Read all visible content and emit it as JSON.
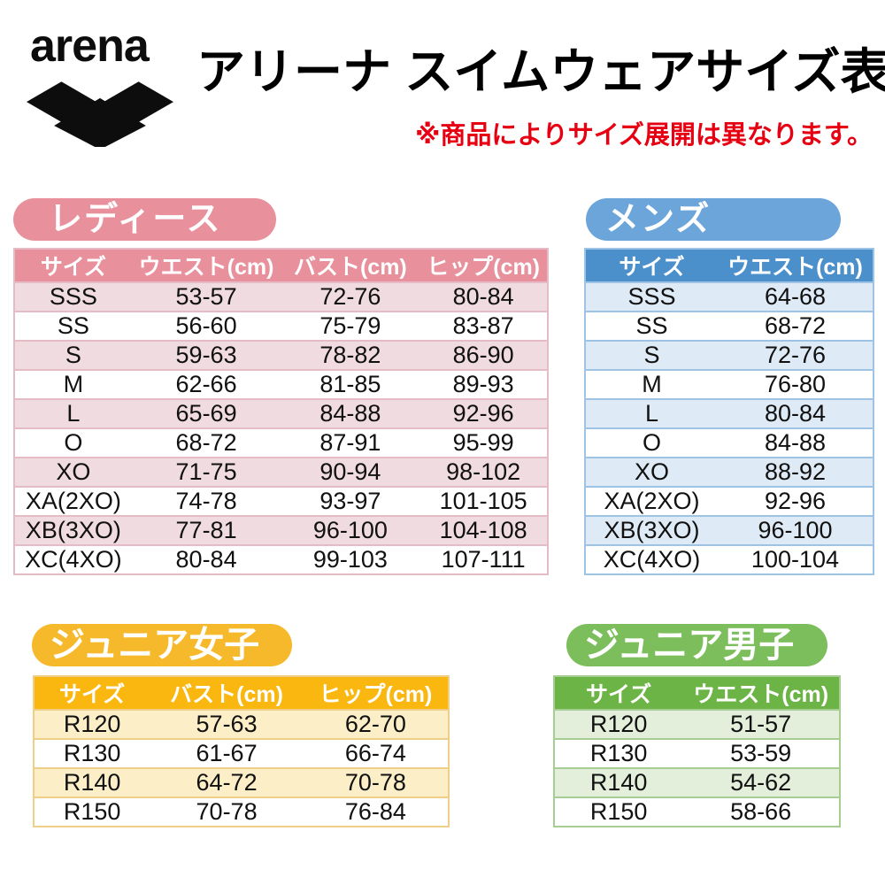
{
  "logo": {
    "wordmark": "arena"
  },
  "header": {
    "title": "アリーナ スイムウェアサイズ表",
    "note": "※商品によりサイズ展開は異なります。",
    "note_color": "#E60012"
  },
  "sections": [
    {
      "id": "ladies",
      "badge": "レディース",
      "columns": [
        "サイズ",
        "ウエスト(cm)",
        "バスト(cm)",
        "ヒップ(cm)"
      ],
      "rows": [
        [
          "SSS",
          "53-57",
          "72-76",
          "80-84"
        ],
        [
          "SS",
          "56-60",
          "75-79",
          "83-87"
        ],
        [
          "S",
          "59-63",
          "78-82",
          "86-90"
        ],
        [
          "M",
          "62-66",
          "81-85",
          "89-93"
        ],
        [
          "L",
          "65-69",
          "84-88",
          "92-96"
        ],
        [
          "O",
          "68-72",
          "87-91",
          "95-99"
        ],
        [
          "XO",
          "71-75",
          "90-94",
          "98-102"
        ],
        [
          "XA(2XO)",
          "74-78",
          "93-97",
          "101-105"
        ],
        [
          "XB(3XO)",
          "77-81",
          "96-100",
          "104-108"
        ],
        [
          "XC(4XO)",
          "80-84",
          "99-103",
          "107-111"
        ]
      ],
      "colors": {
        "badge_bg": "#E8919D",
        "header_bg": "#E8909C",
        "header_text": "#FFFFFF",
        "row_tint": "#F0DBE1",
        "border": "#E5BBC5"
      }
    },
    {
      "id": "mens",
      "badge": "メンズ",
      "columns": [
        "サイズ",
        "ウエスト(cm)"
      ],
      "rows": [
        [
          "SSS",
          "64-68"
        ],
        [
          "SS",
          "68-72"
        ],
        [
          "S",
          "72-76"
        ],
        [
          "M",
          "76-80"
        ],
        [
          "L",
          "80-84"
        ],
        [
          "O",
          "84-88"
        ],
        [
          "XO",
          "88-92"
        ],
        [
          "XA(2XO)",
          "92-96"
        ],
        [
          "XB(3XO)",
          "96-100"
        ],
        [
          "XC(4XO)",
          "100-104"
        ]
      ],
      "colors": {
        "badge_bg": "#6BA5D9",
        "header_bg": "#4C90CB",
        "header_text": "#FFFFFF",
        "row_tint": "#DEEAF5",
        "border": "#9FC3E4"
      }
    },
    {
      "id": "junior-girls",
      "badge": "ジュニア女子",
      "columns": [
        "サイズ",
        "バスト(cm)",
        "ヒップ(cm)"
      ],
      "rows": [
        [
          "R120",
          "57-63",
          "62-70"
        ],
        [
          "R130",
          "61-67",
          "66-74"
        ],
        [
          "R140",
          "64-72",
          "70-78"
        ],
        [
          "R150",
          "70-78",
          "76-84"
        ]
      ],
      "colors": {
        "badge_bg": "#F7B92C",
        "header_bg": "#FAB70F",
        "header_text": "#FFFFFF",
        "row_tint": "#FCEFC8",
        "border": "#EFCF87"
      }
    },
    {
      "id": "junior-boys",
      "badge": "ジュニア男子",
      "columns": [
        "サイズ",
        "ウエスト(cm)"
      ],
      "rows": [
        [
          "R120",
          "51-57"
        ],
        [
          "R130",
          "53-59"
        ],
        [
          "R140",
          "54-62"
        ],
        [
          "R150",
          "58-66"
        ]
      ],
      "colors": {
        "badge_bg": "#7CBE5C",
        "header_bg": "#6DB446",
        "header_text": "#FFFFFF",
        "row_tint": "#E3EFDA",
        "border": "#A6CD92"
      }
    }
  ]
}
